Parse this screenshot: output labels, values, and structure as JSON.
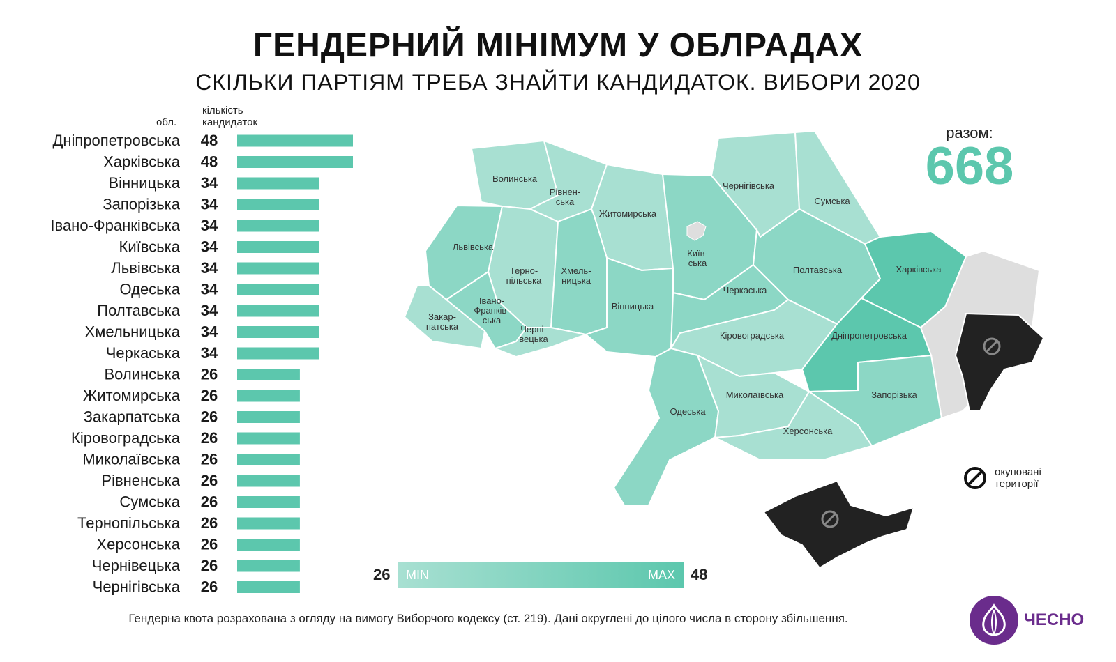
{
  "title": "ГЕНДЕРНИЙ МІНІМУМ У ОБЛРАДАХ",
  "subtitle": "СКІЛЬКИ ПАРТІЯМ ТРЕБА ЗНАЙТИ КАНДИДАТОК. ВИБОРИ 2020",
  "header_oblast": "обл.",
  "header_count": "кількість\nкандидаток",
  "total_label": "разом:",
  "total_value": "668",
  "scale": {
    "min_value": "26",
    "max_value": "48",
    "min_label": "MIN",
    "max_label": "MAX"
  },
  "occupied_label": "окуповані\nтериторії",
  "footnote": "Гендерна квота розрахована з огляду на вимогу Виборчого кодексу (ст. 219). Дані округлені до цілого числа в сторону збільшення.",
  "logo_text": "ЧЕСНО",
  "colors": {
    "bar": "#5cc7ad",
    "scale_start": "#a8e0d2",
    "scale_end": "#5cc7ad",
    "occupied": "#222222",
    "annexed_gray": "#dedede",
    "logo": "#6a2c8c"
  },
  "chart_data": {
    "type": "bar",
    "orientation": "horizontal",
    "categories": [
      "Дніпропетровська",
      "Харківська",
      "Вінницька",
      "Запорізька",
      "Івано-Франківська",
      "Київська",
      "Львівська",
      "Одеська",
      "Полтавська",
      "Хмельницька",
      "Черкаська",
      "Волинська",
      "Житомирська",
      "Закарпатська",
      "Кіровоградська",
      "Миколаївська",
      "Рівненська",
      "Сумська",
      "Тернопільська",
      "Херсонська",
      "Чернівецька",
      "Чернігівська"
    ],
    "values": [
      48,
      48,
      34,
      34,
      34,
      34,
      34,
      34,
      34,
      34,
      34,
      26,
      26,
      26,
      26,
      26,
      26,
      26,
      26,
      26,
      26,
      26
    ],
    "xlim": [
      0,
      48
    ],
    "grid": false,
    "legend": "none"
  },
  "map": {
    "regions": [
      {
        "id": "volynska",
        "label": "Волинська",
        "value": 26
      },
      {
        "id": "rivnenska",
        "label": "Рівнен-\nська",
        "value": 26
      },
      {
        "id": "zhytomyrska",
        "label": "Житомирська",
        "value": 26
      },
      {
        "id": "kyivska",
        "label": "Київ-\nська",
        "value": 34
      },
      {
        "id": "chernihivska",
        "label": "Чернігівська",
        "value": 26
      },
      {
        "id": "sumska",
        "label": "Сумська",
        "value": 26
      },
      {
        "id": "lvivska",
        "label": "Львівська",
        "value": 34
      },
      {
        "id": "ternopilska",
        "label": "Терно-\nпільська",
        "value": 26
      },
      {
        "id": "khmelnytska",
        "label": "Хмель-\nницька",
        "value": 34
      },
      {
        "id": "vinnytska",
        "label": "Вінницька",
        "value": 34
      },
      {
        "id": "cherkaska",
        "label": "Черкаська",
        "value": 34
      },
      {
        "id": "poltavska",
        "label": "Полтавська",
        "value": 34
      },
      {
        "id": "kharkivska",
        "label": "Харківська",
        "value": 48
      },
      {
        "id": "zakarpatska",
        "label": "Закар-\nпатська",
        "value": 26
      },
      {
        "id": "ivanofrankivska",
        "label": "Івано-\nФранків-\nська",
        "value": 34
      },
      {
        "id": "chernivetska",
        "label": "Черні-\nвецька",
        "value": 26
      },
      {
        "id": "kirovohradska",
        "label": "Кіровоградська",
        "value": 26
      },
      {
        "id": "dnipropetrovska",
        "label": "Дніпропетровська",
        "value": 48
      },
      {
        "id": "odeska",
        "label": "Одеська",
        "value": 34
      },
      {
        "id": "mykolaivska",
        "label": "Миколаївська",
        "value": 26
      },
      {
        "id": "zaporizka",
        "label": "Запорізька",
        "value": 34
      },
      {
        "id": "khersonska",
        "label": "Херсонська",
        "value": 26
      }
    ]
  }
}
